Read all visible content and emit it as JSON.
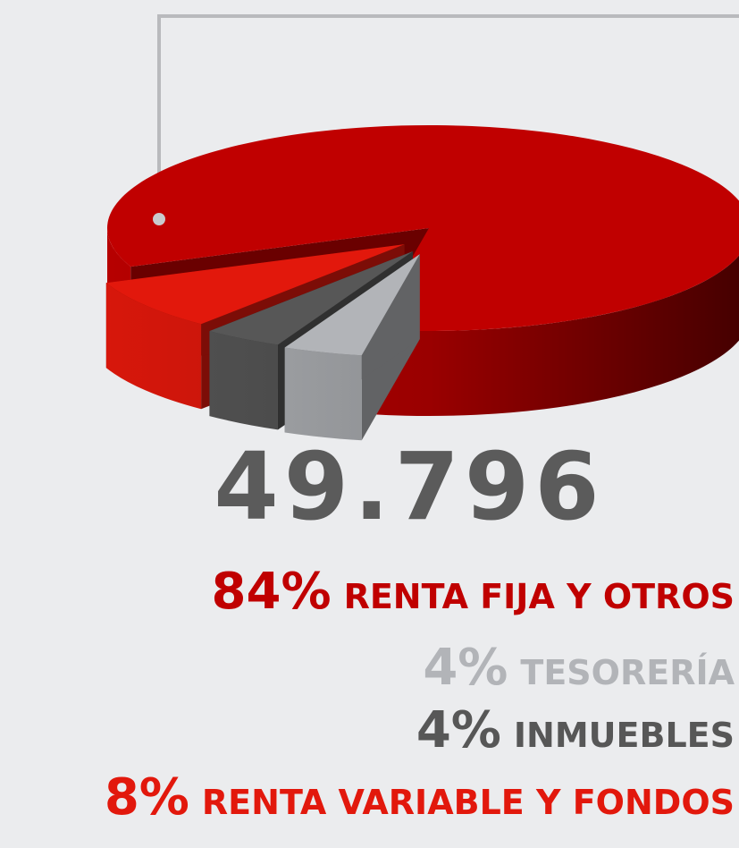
{
  "chart_data": {
    "type": "pie",
    "total_label": "49.796",
    "categories": [
      "RENTA FIJA Y OTROS",
      "TESORERÍA",
      "INMUEBLES",
      "RENTA VARIABLE Y FONDOS"
    ],
    "values": [
      84,
      4,
      4,
      8
    ],
    "value_labels": [
      "84%",
      "4%",
      "4%",
      "8%"
    ],
    "colors": [
      "#c00000",
      "#b2b4b8",
      "#575757",
      "#e2180c"
    ]
  }
}
